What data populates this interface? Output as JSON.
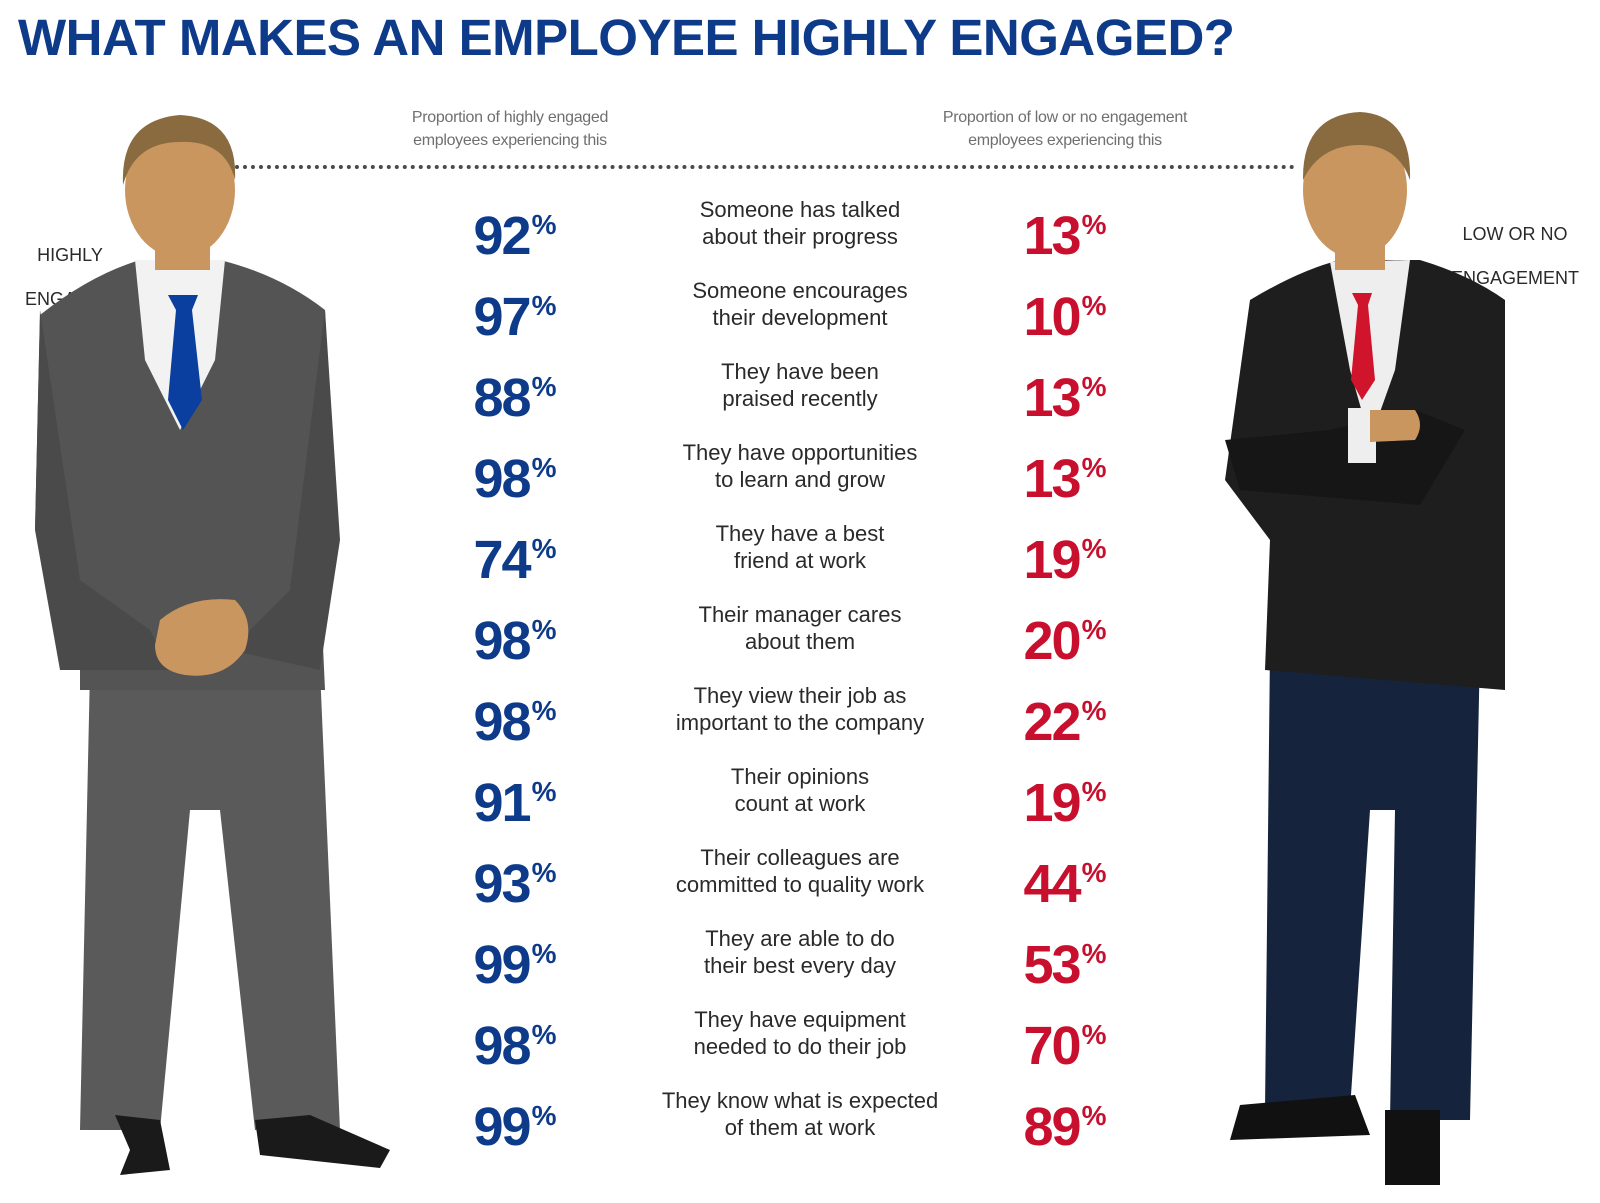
{
  "title": "WHAT MAKES AN EMPLOYEE HIGHLY ENGAGED?",
  "headers": {
    "left_line1": "Proportion of highly engaged",
    "left_line2": "employees experiencing this",
    "right_line1": "Proportion of low or no engagement",
    "right_line2": "employees experiencing this"
  },
  "labels": {
    "left_line1": "HIGHLY",
    "left_line2": "ENGAGED",
    "right_line1": "LOW OR NO",
    "right_line2": "ENGAGEMENT"
  },
  "percent_sign": "%",
  "colors": {
    "title_blue": "#0e3a8a",
    "high_blue": "#0e3a8a",
    "low_red": "#c8102e",
    "left_suit": "#555555",
    "left_tie": "#0a3fa0",
    "right_jacket": "#1e1e1e",
    "right_trousers": "#15243c",
    "right_tie": "#d0142c",
    "skin": "#c9965f",
    "hair": "#8a6a3f"
  },
  "icons": {
    "left_figure": "man-in-grey-suit-blue-tie-icon",
    "right_figure": "man-in-black-jacket-red-tie-arms-crossed-icon"
  },
  "rows": [
    {
      "high": "92",
      "line1": "Someone has talked",
      "line2": "about their progress",
      "low": "13"
    },
    {
      "high": "97",
      "line1": "Someone encourages",
      "line2": "their development",
      "low": "10"
    },
    {
      "high": "88",
      "line1": "They have been",
      "line2": "praised recently",
      "low": "13"
    },
    {
      "high": "98",
      "line1": "They have opportunities",
      "line2": "to learn and grow",
      "low": "13"
    },
    {
      "high": "74",
      "line1": "They have a best",
      "line2": "friend at work",
      "low": "19"
    },
    {
      "high": "98",
      "line1": "Their manager cares",
      "line2": "about them",
      "low": "20"
    },
    {
      "high": "98",
      "line1": "They view their job as",
      "line2": "important to the company",
      "low": "22"
    },
    {
      "high": "91",
      "line1": "Their opinions",
      "line2": "count at work",
      "low": "19"
    },
    {
      "high": "93",
      "line1": "Their colleagues are",
      "line2": "committed to quality work",
      "low": "44"
    },
    {
      "high": "99",
      "line1": "They are able to do",
      "line2": "their best every day",
      "low": "53"
    },
    {
      "high": "98",
      "line1": "They have equipment",
      "line2": "needed to do their job",
      "low": "70"
    },
    {
      "high": "99",
      "line1": "They know what is expected",
      "line2": "of them at work",
      "low": "89"
    }
  ]
}
